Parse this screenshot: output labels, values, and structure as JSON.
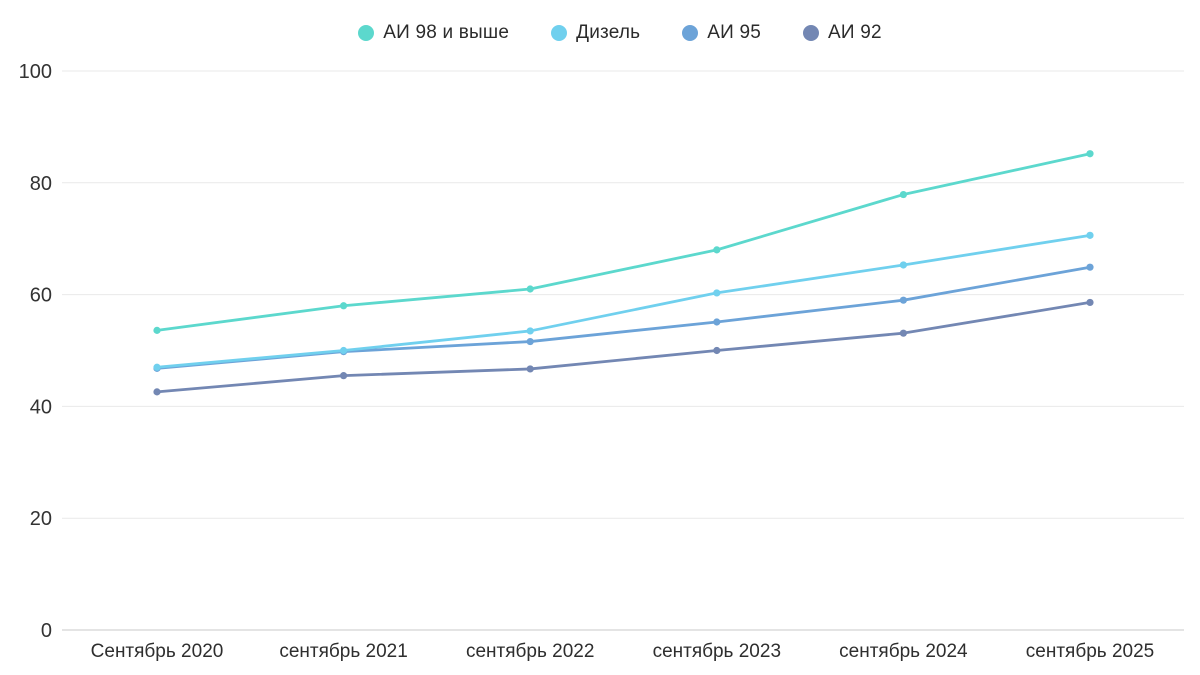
{
  "chart_data": {
    "type": "line",
    "title": "",
    "xlabel": "",
    "ylabel": "",
    "categories": [
      "Сентябрь 2020",
      "сентябрь 2021",
      "сентябрь 2022",
      "сентябрь 2023",
      "сентябрь 2024",
      "сентябрь 2025"
    ],
    "series": [
      {
        "name": "АИ 98 и выше",
        "color": "#5cd8cd",
        "values": [
          53.6,
          58.0,
          61.0,
          68.0,
          77.9,
          85.2
        ]
      },
      {
        "name": "Дизель",
        "color": "#70d0ee",
        "values": [
          47.0,
          50.0,
          53.5,
          60.3,
          65.3,
          70.6
        ]
      },
      {
        "name": "АИ 95",
        "color": "#6ca3d8",
        "values": [
          46.8,
          49.8,
          51.6,
          55.1,
          59.0,
          64.9
        ]
      },
      {
        "name": "АИ 92",
        "color": "#7387b3",
        "values": [
          42.6,
          45.5,
          46.7,
          50.0,
          53.1,
          58.6
        ]
      }
    ],
    "ylim": [
      0,
      100
    ],
    "yticks": [
      0,
      20,
      40,
      60,
      80,
      100
    ],
    "grid": true,
    "legend_position": "top"
  },
  "style": {
    "background": "#ffffff",
    "gridline_color": "#e9e9e9",
    "baseline_color": "#c9c9c9",
    "tick_text_color": "#333333"
  }
}
